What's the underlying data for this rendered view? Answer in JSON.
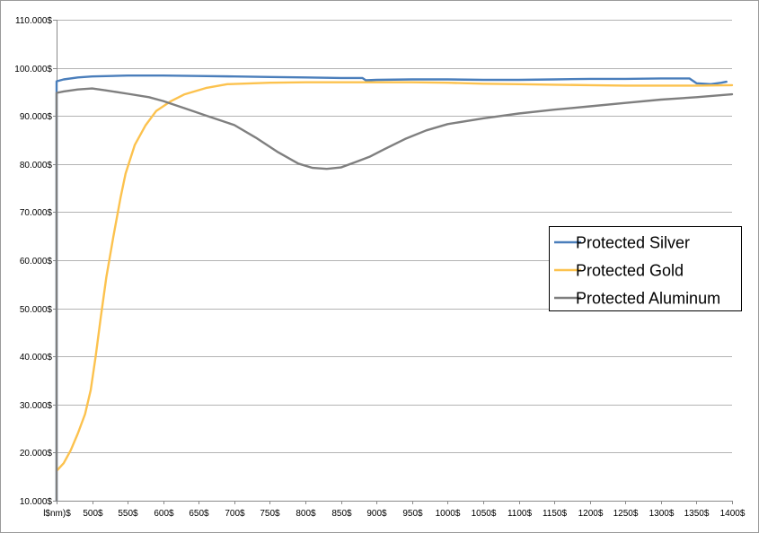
{
  "chart_data": {
    "type": "line",
    "title": "",
    "xlabel": "",
    "ylabel": "",
    "xlim": [
      450,
      1400
    ],
    "ylim": [
      10,
      110
    ],
    "grid": true,
    "legend_position": "right-middle",
    "y_ticks": [
      {
        "value": 10,
        "label": "10.000$"
      },
      {
        "value": 20,
        "label": "20.000$"
      },
      {
        "value": 30,
        "label": "30.000$"
      },
      {
        "value": 40,
        "label": "40.000$"
      },
      {
        "value": 50,
        "label": "50.000$"
      },
      {
        "value": 60,
        "label": "60.000$"
      },
      {
        "value": 70,
        "label": "70.000$"
      },
      {
        "value": 80,
        "label": "80.000$"
      },
      {
        "value": 90,
        "label": "90.000$"
      },
      {
        "value": 100,
        "label": "100.000$"
      },
      {
        "value": 110,
        "label": "110.000$"
      }
    ],
    "x_ticks": [
      {
        "value": 450,
        "label": "l$nm)$"
      },
      {
        "value": 500,
        "label": "500$"
      },
      {
        "value": 550,
        "label": "550$"
      },
      {
        "value": 600,
        "label": "600$"
      },
      {
        "value": 650,
        "label": "650$"
      },
      {
        "value": 700,
        "label": "700$"
      },
      {
        "value": 750,
        "label": "750$"
      },
      {
        "value": 800,
        "label": "800$"
      },
      {
        "value": 850,
        "label": "850$"
      },
      {
        "value": 900,
        "label": "900$"
      },
      {
        "value": 950,
        "label": "950$"
      },
      {
        "value": 1000,
        "label": "1000$"
      },
      {
        "value": 1050,
        "label": "1050$"
      },
      {
        "value": 1100,
        "label": "1100$"
      },
      {
        "value": 1150,
        "label": "1150$"
      },
      {
        "value": 1200,
        "label": "1200$"
      },
      {
        "value": 1250,
        "label": "1250$"
      },
      {
        "value": 1300,
        "label": "1300$"
      },
      {
        "value": 1350,
        "label": "1350$"
      },
      {
        "value": 1400,
        "label": "1400$"
      }
    ],
    "series": [
      {
        "name": "Protected Silver",
        "color": "#4a7ebb",
        "points": [
          [
            450,
            10
          ],
          [
            450,
            97.2
          ],
          [
            460,
            97.6
          ],
          [
            480,
            98.0
          ],
          [
            500,
            98.2
          ],
          [
            550,
            98.4
          ],
          [
            600,
            98.4
          ],
          [
            650,
            98.3
          ],
          [
            700,
            98.2
          ],
          [
            750,
            98.1
          ],
          [
            800,
            98.0
          ],
          [
            850,
            97.9
          ],
          [
            880,
            97.9
          ],
          [
            885,
            97.4
          ],
          [
            900,
            97.5
          ],
          [
            950,
            97.6
          ],
          [
            1000,
            97.6
          ],
          [
            1050,
            97.5
          ],
          [
            1100,
            97.5
          ],
          [
            1150,
            97.6
          ],
          [
            1200,
            97.7
          ],
          [
            1250,
            97.7
          ],
          [
            1300,
            97.8
          ],
          [
            1340,
            97.8
          ],
          [
            1350,
            96.8
          ],
          [
            1370,
            96.6
          ],
          [
            1385,
            96.9
          ],
          [
            1392,
            97.1
          ]
        ]
      },
      {
        "name": "Protected Gold",
        "color": "#fcc24e",
        "points": [
          [
            450,
            16.2
          ],
          [
            460,
            17.8
          ],
          [
            470,
            20.5
          ],
          [
            480,
            24
          ],
          [
            490,
            28
          ],
          [
            498,
            33
          ],
          [
            505,
            40
          ],
          [
            512,
            48
          ],
          [
            520,
            56.5
          ],
          [
            530,
            65
          ],
          [
            540,
            73
          ],
          [
            547,
            78
          ],
          [
            560,
            84
          ],
          [
            575,
            88
          ],
          [
            590,
            91
          ],
          [
            610,
            93
          ],
          [
            630,
            94.5
          ],
          [
            660,
            95.8
          ],
          [
            690,
            96.6
          ],
          [
            750,
            96.9
          ],
          [
            800,
            97.0
          ],
          [
            850,
            97.0
          ],
          [
            900,
            97.0
          ],
          [
            950,
            97.0
          ],
          [
            1000,
            96.9
          ],
          [
            1050,
            96.7
          ],
          [
            1100,
            96.6
          ],
          [
            1150,
            96.5
          ],
          [
            1200,
            96.4
          ],
          [
            1250,
            96.3
          ],
          [
            1300,
            96.3
          ],
          [
            1350,
            96.3
          ],
          [
            1400,
            96.4
          ]
        ]
      },
      {
        "name": "Protected Aluminum",
        "color": "#7f7f7f",
        "points": [
          [
            450,
            10
          ],
          [
            450,
            94.8
          ],
          [
            460,
            95.1
          ],
          [
            480,
            95.5
          ],
          [
            500,
            95.7
          ],
          [
            520,
            95.3
          ],
          [
            550,
            94.6
          ],
          [
            580,
            93.9
          ],
          [
            600,
            93.1
          ],
          [
            630,
            91.6
          ],
          [
            660,
            90.1
          ],
          [
            700,
            88.1
          ],
          [
            730,
            85.5
          ],
          [
            760,
            82.6
          ],
          [
            790,
            80.1
          ],
          [
            810,
            79.2
          ],
          [
            830,
            79.0
          ],
          [
            850,
            79.3
          ],
          [
            870,
            80.4
          ],
          [
            890,
            81.5
          ],
          [
            910,
            83.0
          ],
          [
            940,
            85.2
          ],
          [
            970,
            87.0
          ],
          [
            1000,
            88.3
          ],
          [
            1050,
            89.5
          ],
          [
            1100,
            90.5
          ],
          [
            1150,
            91.3
          ],
          [
            1200,
            92.0
          ],
          [
            1250,
            92.7
          ],
          [
            1300,
            93.4
          ],
          [
            1350,
            93.9
          ],
          [
            1400,
            94.5
          ]
        ]
      }
    ]
  }
}
